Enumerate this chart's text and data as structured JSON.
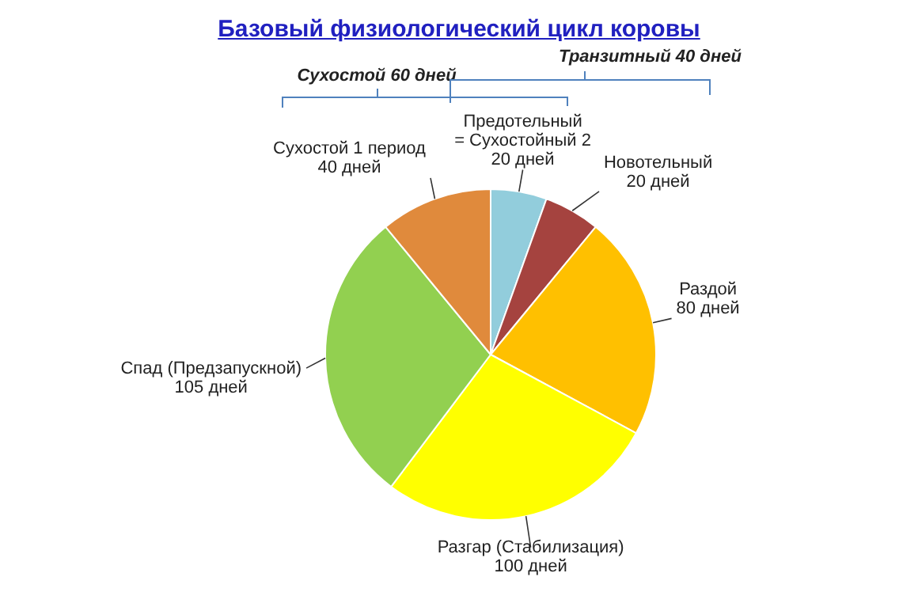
{
  "chart_data": {
    "type": "pie",
    "title": "Базовый физиологический цикл коровы",
    "categories": [
      "Предотельный = Сухостойный 2",
      "Новотельный",
      "Раздой",
      "Разгар (Стабилизация)",
      "Спад (Предзапускной)",
      "Сухостой 1 период"
    ],
    "values": [
      20,
      20,
      80,
      100,
      105,
      40
    ],
    "value_labels": [
      "20 дней",
      "20 дней",
      "80 дней",
      "100 дней",
      "105 дней",
      "40 дней"
    ],
    "colors": [
      "#92cddc",
      "#a5433f",
      "#ffc000",
      "#ffff00",
      "#92d050",
      "#e08a3c"
    ],
    "annotations": [
      "Сухостой 60 дней",
      "Транзитный 40 дней"
    ],
    "legend": false
  }
}
